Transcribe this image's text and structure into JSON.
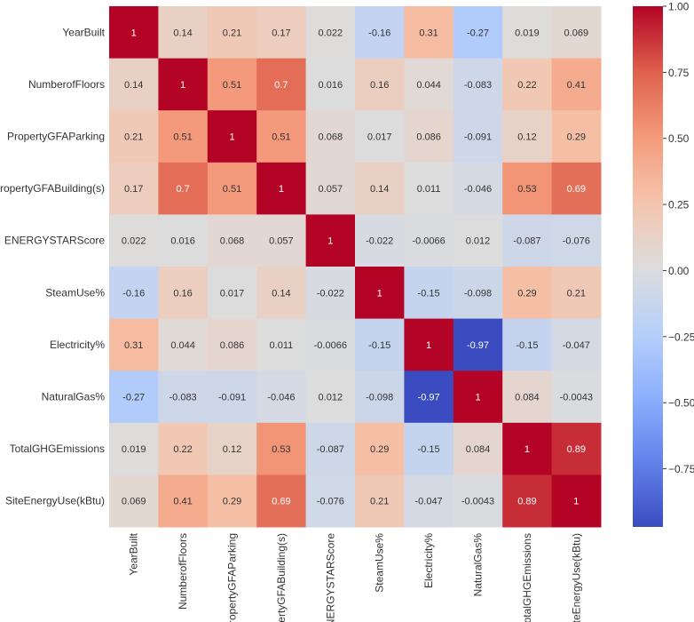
{
  "chart_data": {
    "type": "heatmap",
    "title": "",
    "xlabel": "",
    "ylabel": "",
    "colormap": "coolwarm",
    "colors": {
      "low": "#3b4cc0",
      "mid": "#dddcdc",
      "high": "#b40426"
    },
    "vlim": [
      -0.97,
      1.0
    ],
    "labels": [
      "YearBuilt",
      "NumberofFloors",
      "PropertyGFAParking",
      "PropertyGFABuilding(s)",
      "ENERGYSTARScore",
      "SteamUse%",
      "Electricity%",
      "NaturalGas%",
      "TotalGHGEmissions",
      "SiteEnergyUse(kBtu)"
    ],
    "matrix": [
      [
        1,
        0.14,
        0.21,
        0.17,
        0.022,
        -0.16,
        0.31,
        -0.27,
        0.019,
        0.069
      ],
      [
        0.14,
        1,
        0.51,
        0.7,
        0.016,
        0.16,
        0.044,
        -0.083,
        0.22,
        0.41
      ],
      [
        0.21,
        0.51,
        1,
        0.51,
        0.068,
        0.017,
        0.086,
        -0.091,
        0.12,
        0.29
      ],
      [
        0.17,
        0.7,
        0.51,
        1,
        0.057,
        0.14,
        0.011,
        -0.046,
        0.53,
        0.69
      ],
      [
        0.022,
        0.016,
        0.068,
        0.057,
        1,
        -0.022,
        -0.0066,
        0.012,
        -0.087,
        -0.076
      ],
      [
        -0.16,
        0.16,
        0.017,
        0.14,
        -0.022,
        1,
        -0.15,
        -0.098,
        0.29,
        0.21
      ],
      [
        0.31,
        0.044,
        0.086,
        0.011,
        -0.0066,
        -0.15,
        1,
        -0.97,
        -0.15,
        -0.047
      ],
      [
        -0.27,
        -0.083,
        -0.091,
        -0.046,
        0.012,
        -0.098,
        -0.97,
        1,
        0.084,
        -0.0043
      ],
      [
        0.019,
        0.22,
        0.12,
        0.53,
        -0.087,
        0.29,
        -0.15,
        0.084,
        1,
        0.89
      ],
      [
        0.069,
        0.41,
        0.29,
        0.69,
        -0.076,
        0.21,
        -0.047,
        -0.0043,
        0.89,
        1
      ]
    ],
    "annotations": [
      [
        "1",
        "0.14",
        "0.21",
        "0.17",
        "0.022",
        "-0.16",
        "0.31",
        "-0.27",
        "0.019",
        "0.069"
      ],
      [
        "0.14",
        "1",
        "0.51",
        "0.7",
        "0.016",
        "0.16",
        "0.044",
        "-0.083",
        "0.22",
        "0.41"
      ],
      [
        "0.21",
        "0.51",
        "1",
        "0.51",
        "0.068",
        "0.017",
        "0.086",
        "-0.091",
        "0.12",
        "0.29"
      ],
      [
        "0.17",
        "0.7",
        "0.51",
        "1",
        "0.057",
        "0.14",
        "0.011",
        "-0.046",
        "0.53",
        "0.69"
      ],
      [
        "0.022",
        "0.016",
        "0.068",
        "0.057",
        "1",
        "-0.022",
        "-0.0066",
        "0.012",
        "-0.087",
        "-0.076"
      ],
      [
        "-0.16",
        "0.16",
        "0.017",
        "0.14",
        "-0.022",
        "1",
        "-0.15",
        "-0.098",
        "0.29",
        "0.21"
      ],
      [
        "0.31",
        "0.044",
        "0.086",
        "0.011",
        "-0.0066",
        "-0.15",
        "1",
        "-0.97",
        "-0.15",
        "-0.047"
      ],
      [
        "-0.27",
        "-0.083",
        "-0.091",
        "-0.046",
        "0.012",
        "-0.098",
        "-0.97",
        "1",
        "0.084",
        "-0.0043"
      ],
      [
        "0.019",
        "0.22",
        "0.12",
        "0.53",
        "-0.087",
        "0.29",
        "-0.15",
        "0.084",
        "1",
        "0.89"
      ],
      [
        "0.069",
        "0.41",
        "0.29",
        "0.69",
        "-0.076",
        "0.21",
        "-0.047",
        "-0.0043",
        "0.89",
        "1"
      ]
    ],
    "colorbar": {
      "ticks": [
        1.0,
        0.75,
        0.5,
        0.25,
        0.0,
        -0.25,
        -0.5,
        -0.75
      ],
      "tick_labels": [
        "1.00",
        "0.75",
        "0.50",
        "0.25",
        "0.00",
        "−0.25",
        "−0.50",
        "−0.75"
      ]
    },
    "grid": false,
    "legend": "colorbar-right"
  }
}
